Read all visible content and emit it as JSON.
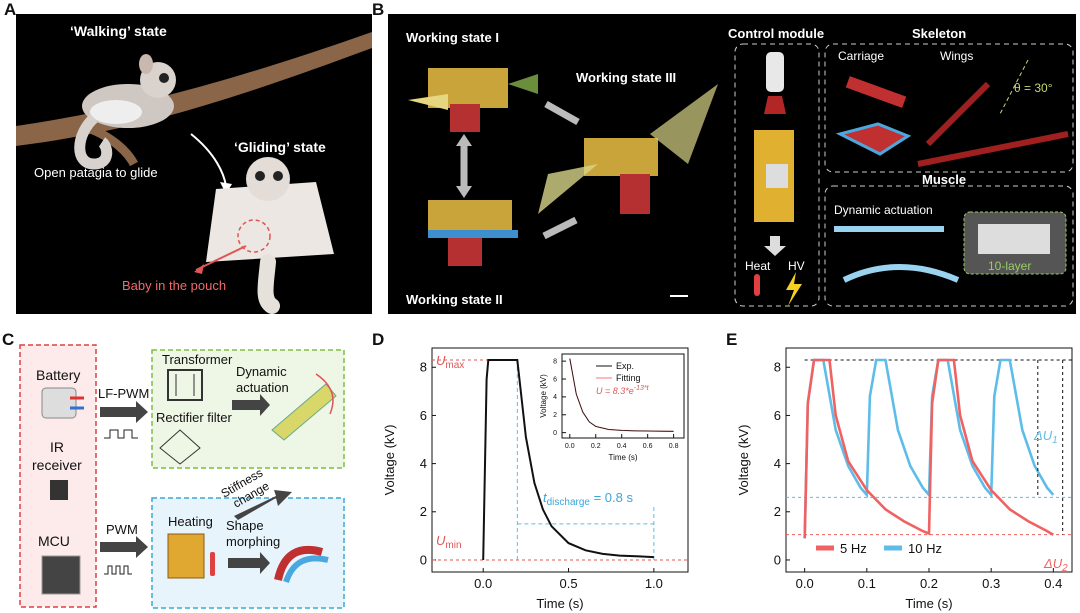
{
  "panel_labels": {
    "A": "A",
    "B": "B",
    "C": "C",
    "D": "D",
    "E": "E"
  },
  "panel_a": {
    "walking": "‘Walking’ state",
    "gliding": "‘Gliding’ state",
    "open_patagia": "Open patagia to glide",
    "baby": "Baby in the pouch"
  },
  "panel_b": {
    "ws1": "Working state I",
    "ws2": "Working state II",
    "ws3": "Working state III",
    "control_module": "Control module",
    "heat": "Heat",
    "hv": "HV",
    "skeleton": "Skeleton",
    "carriage": "Carriage",
    "wings": "Wings",
    "theta": "θ = 30°",
    "muscle": "Muscle",
    "dynamic_actuation": "Dynamic actuation",
    "ten_layer": "10-layer"
  },
  "panel_c": {
    "battery": "Battery",
    "ir1": "IR",
    "ir2": "receiver",
    "mcu": "MCU",
    "lfpwm": "LF-PWM",
    "pwm": "PWM",
    "transformer": "Transformer",
    "rectifier": "Rectifier filter",
    "dyn1": "Dynamic",
    "dyn2": "actuation",
    "stiff1": "Stiffness",
    "stiff2": "change",
    "heating": "Heating",
    "shape1": "Shape",
    "shape2": "morphing"
  },
  "chart_data": [
    {
      "type": "line",
      "panel": "D",
      "xlabel": "Time (s)",
      "ylabel": "Voltage (kV)",
      "xlim": [
        -0.3,
        1.2
      ],
      "ylim": [
        -0.5,
        8.8
      ],
      "xticks": [
        "0.0",
        "0.5",
        "1.0"
      ],
      "yticks": [
        "0",
        "2",
        "4",
        "6",
        "8"
      ],
      "annotations": {
        "umax": "U",
        "umax_sub": "max",
        "umin": "U",
        "umin_sub": "min",
        "tdis": "t",
        "tdis_sub": "discharge",
        "tdis_val": " = 0.8 s"
      },
      "series": [
        {
          "x": [
            0,
            0.02,
            0.03,
            0.2,
            0.25,
            0.3,
            0.35,
            0.4,
            0.5,
            0.6,
            0.7,
            0.8,
            0.9,
            1.0
          ],
          "y": [
            0,
            7.5,
            8.3,
            8.3,
            5.1,
            3.2,
            2.1,
            1.4,
            0.7,
            0.4,
            0.25,
            0.18,
            0.15,
            0.12
          ]
        }
      ],
      "inset": {
        "xlabel": "Time (s)",
        "ylabel": "Voltage (kV)",
        "xticks": [
          "0.0",
          "0.2",
          "0.4",
          "0.6",
          "0.8"
        ],
        "yticks": [
          "0",
          "2",
          "4",
          "6",
          "8"
        ],
        "legend": [
          {
            "name": "Exp.",
            "color": "#111111"
          },
          {
            "name": "Fitting",
            "color": "#f07a7a"
          }
        ],
        "fit_label": "U = 8.3*e",
        "fit_exp": "-13*t",
        "x": [
          0,
          0.05,
          0.1,
          0.15,
          0.2,
          0.3,
          0.4,
          0.5,
          0.6,
          0.7,
          0.8
        ],
        "y": [
          8.3,
          4.3,
          2.3,
          1.2,
          0.7,
          0.35,
          0.25,
          0.2,
          0.18,
          0.16,
          0.15
        ]
      }
    },
    {
      "type": "line",
      "panel": "E",
      "xlabel": "Time (s)",
      "ylabel": "Voltage (kV)",
      "xlim": [
        -0.03,
        0.43
      ],
      "ylim": [
        -0.5,
        8.8
      ],
      "xticks": [
        "0.0",
        "0.1",
        "0.2",
        "0.3",
        "0.4"
      ],
      "yticks": [
        "0",
        "2",
        "4",
        "6",
        "8"
      ],
      "annotations": {
        "du1": "ΔU",
        "du1_sub": "1",
        "du2": "ΔU",
        "du2_sub": "2"
      },
      "legend": [
        {
          "name": "5 Hz",
          "color": "#f06262"
        },
        {
          "name": "10 Hz",
          "color": "#5ebde8"
        }
      ],
      "series": [
        {
          "name": "5 Hz",
          "color": "#f06262",
          "x": [
            0,
            0.005,
            0.015,
            0.04,
            0.05,
            0.07,
            0.1,
            0.13,
            0.16,
            0.19,
            0.2,
            0.205,
            0.215,
            0.24,
            0.25,
            0.27,
            0.3,
            0.33,
            0.36,
            0.39,
            0.4
          ],
          "y": [
            0.9,
            6.5,
            8.3,
            8.3,
            6.0,
            4.1,
            2.9,
            2.1,
            1.6,
            1.2,
            1.1,
            6.5,
            8.3,
            8.3,
            6.0,
            4.1,
            2.9,
            2.1,
            1.6,
            1.2,
            1.05
          ]
        },
        {
          "name": "10 Hz",
          "color": "#5ebde8",
          "x": [
            0,
            0.005,
            0.015,
            0.03,
            0.05,
            0.07,
            0.09,
            0.1,
            0.105,
            0.115,
            0.13,
            0.15,
            0.17,
            0.19,
            0.2,
            0.205,
            0.215,
            0.23,
            0.25,
            0.27,
            0.29,
            0.3,
            0.305,
            0.315,
            0.33,
            0.35,
            0.37,
            0.39,
            0.4
          ],
          "y": [
            0.9,
            6.5,
            8.3,
            8.3,
            5.4,
            3.9,
            3.0,
            2.7,
            6.8,
            8.3,
            8.3,
            5.4,
            3.9,
            3.0,
            2.7,
            6.8,
            8.3,
            8.3,
            5.4,
            3.9,
            3.0,
            2.7,
            6.8,
            8.3,
            8.3,
            5.4,
            3.9,
            3.0,
            2.7
          ]
        }
      ]
    }
  ]
}
